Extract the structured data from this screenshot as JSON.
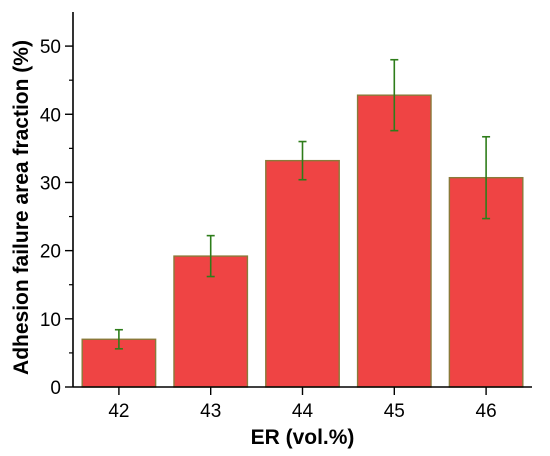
{
  "chart_data": {
    "type": "bar",
    "categories": [
      "42",
      "43",
      "44",
      "45",
      "46"
    ],
    "values": [
      7.0,
      19.2,
      33.2,
      42.8,
      30.7
    ],
    "error_plus_minus": [
      1.4,
      3.0,
      2.8,
      5.2,
      6.0
    ],
    "title": "",
    "xlabel": "ER (vol.%)",
    "ylabel": "Adhesion failure area fraction (%)",
    "ylim": [
      0,
      55
    ],
    "yticks": [
      0,
      10,
      20,
      30,
      40,
      50
    ],
    "grid": false,
    "legend": "none",
    "colors": {
      "bar_fill": "#ef4444",
      "bar_edge": "#8a7a3a",
      "error_bar": "#2e7d1a",
      "axis": "#000000"
    }
  }
}
